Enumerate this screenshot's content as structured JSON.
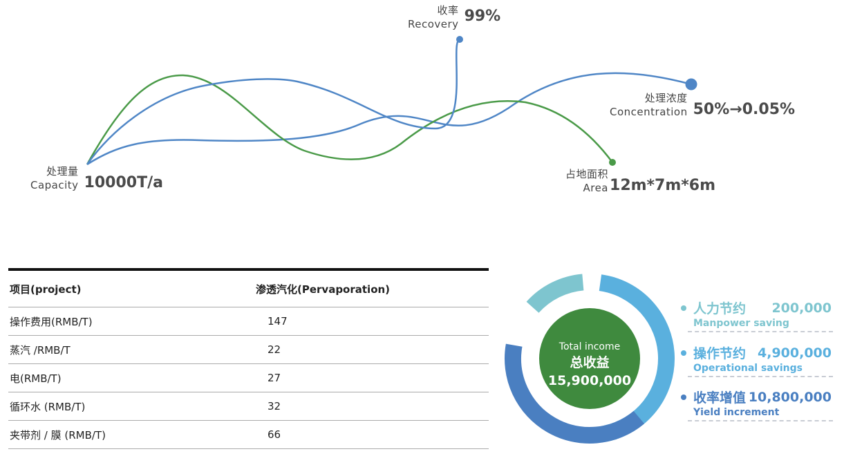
{
  "chart_data": [
    {
      "type": "line",
      "metrics": [
        {
          "label_cn": "处理量",
          "label_en": "Capacity",
          "value": "10000T/a"
        },
        {
          "label_cn": "收率",
          "label_en": "Recovery",
          "value": "99%"
        },
        {
          "label_cn": "处理浓度",
          "label_en": "Concentration",
          "value": "50%→0.05%"
        },
        {
          "label_cn": "占地面积",
          "label_en": "Area",
          "value": "12m*7m*6m"
        }
      ],
      "colors": {
        "blue": "#4f86c6",
        "green": "#4a9a48"
      }
    },
    {
      "type": "table",
      "headers": [
        "项目(project)",
        "渗透汽化(Pervaporation)"
      ],
      "rows": [
        [
          "操作费用(RMB/T)",
          "147"
        ],
        [
          "蒸汽 /RMB/T",
          "22"
        ],
        [
          "电(RMB/T)",
          "27"
        ],
        [
          "循环水 (RMB/T)",
          "32"
        ],
        [
          "夹带剂 / 膜 (RMB/T)",
          "66"
        ]
      ]
    },
    {
      "type": "pie",
      "total": {
        "label_en": "Total income",
        "label_cn": "总收益",
        "value": "15,900,000"
      },
      "segments": [
        {
          "name_cn": "人力节约",
          "name_en": "Manpower saving",
          "value": 200000,
          "display": "200,000",
          "color": "#7ec5cf"
        },
        {
          "name_cn": "操作节约",
          "name_en": "Operational savings",
          "value": 4900000,
          "display": "4,900,000",
          "color": "#5ab0de"
        },
        {
          "name_cn": "收率增值",
          "name_en": "Yield increment",
          "value": 10800000,
          "display": "10,800,000",
          "color": "#4a7fc1"
        }
      ],
      "center_color": "#3f8a3e"
    }
  ]
}
